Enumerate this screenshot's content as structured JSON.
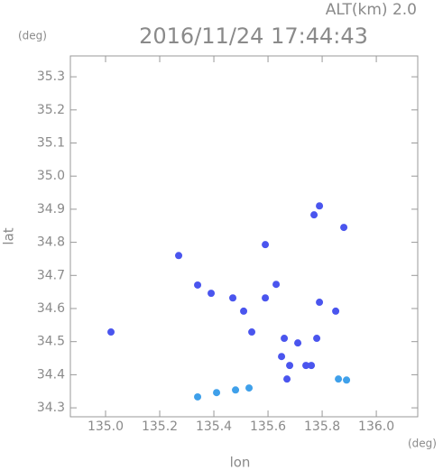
{
  "chart_data": {
    "type": "scatter",
    "title": "2016/11/24 17:44:43",
    "subtitle": "ALT(km) 2.0",
    "y_unit": "(deg)",
    "x_unit": "(deg)",
    "x_label": "lon",
    "y_label": "lat",
    "xlim": [
      134.87,
      136.153
    ],
    "ylim": [
      34.273,
      35.363
    ],
    "xticks": [
      {
        "value": 135,
        "label": "135.0"
      },
      135.2,
      135.4,
      135.6,
      135.8,
      {
        "value": 136,
        "label": "136.0"
      }
    ],
    "yticks": [
      34.3,
      34.4,
      34.5,
      34.6,
      34.7,
      34.8,
      34.9,
      {
        "value": 35,
        "label": "35.0"
      },
      35.1,
      35.2,
      35.3
    ],
    "series": [
      {
        "color": "#4a55ee",
        "x": [
          135.02,
          135.27,
          135.59,
          135.77,
          135.79,
          135.88,
          135.34,
          135.47,
          135.39,
          135.51,
          135.54,
          135.63,
          135.59,
          135.66,
          135.71,
          135.78,
          135.68,
          135.67,
          135.65,
          135.74,
          135.85,
          135.79,
          135.76
        ],
        "y": [
          34.529,
          34.76,
          34.793,
          34.883,
          34.91,
          34.845,
          34.671,
          34.632,
          34.646,
          34.592,
          34.529,
          34.673,
          34.632,
          34.51,
          34.496,
          34.51,
          34.428,
          34.387,
          34.455,
          34.428,
          34.592,
          34.619,
          34.428
        ]
      },
      {
        "color": "#3fa0ea",
        "x": [
          135.34,
          135.41,
          135.48,
          135.53,
          135.86,
          135.89
        ],
        "y": [
          34.333,
          34.346,
          34.354,
          34.36,
          34.387,
          34.384
        ]
      }
    ]
  }
}
